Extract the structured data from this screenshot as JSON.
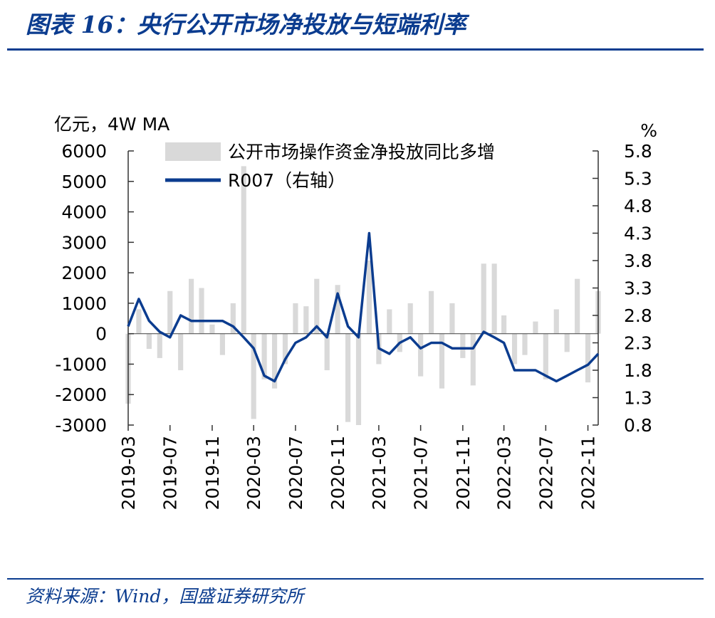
{
  "title": "图表 16：央行公开市场净投放与短端利率",
  "source": "资料来源：Wind，国盛证券研究所",
  "chart_data": {
    "type": "bar+line",
    "left_unit": "亿元，4W MA",
    "right_unit": "%",
    "left_ylim": [
      -3000,
      6000
    ],
    "right_ylim": [
      0.8,
      5.8
    ],
    "left_ticks": [
      "6000",
      "5000",
      "4000",
      "3000",
      "2000",
      "1000",
      "0",
      "-1000",
      "-2000",
      "-3000"
    ],
    "right_ticks": [
      "5.8",
      "5.3",
      "4.8",
      "4.3",
      "3.8",
      "3.3",
      "2.8",
      "2.3",
      "1.8",
      "1.3",
      "0.8"
    ],
    "x_ticks": [
      "2019-03",
      "2019-07",
      "2019-11",
      "2020-03",
      "2020-07",
      "2020-11",
      "2021-03",
      "2021-07",
      "2021-11",
      "2022-03",
      "2022-07",
      "2022-11"
    ],
    "x_start": "2019-03",
    "x_end": "2022-12",
    "bar_color": "#d9d9d9",
    "line_color": "#0b3c8f",
    "legend": [
      "公开市场操作资金净投放同比多增",
      "R007（右轴）"
    ],
    "series": [
      {
        "name": "公开市场操作资金净投放同比多增",
        "axis": "left",
        "x": [
          "2019-03-01",
          "2019-04-01",
          "2019-05-01",
          "2019-06-01",
          "2019-07-01",
          "2019-08-01",
          "2019-09-01",
          "2019-10-01",
          "2019-11-01",
          "2019-12-01",
          "2020-01-01",
          "2020-02-01",
          "2020-03-01",
          "2020-04-01",
          "2020-05-01",
          "2020-06-01",
          "2020-07-01",
          "2020-08-01",
          "2020-09-01",
          "2020-10-01",
          "2020-11-01",
          "2020-12-01",
          "2021-01-01",
          "2021-02-01",
          "2021-03-01",
          "2021-04-01",
          "2021-05-01",
          "2021-06-01",
          "2021-07-01",
          "2021-08-01",
          "2021-09-01",
          "2021-10-01",
          "2021-11-01",
          "2021-12-01",
          "2022-01-01",
          "2022-02-01",
          "2022-03-01",
          "2022-04-01",
          "2022-05-01",
          "2022-06-01",
          "2022-07-01",
          "2022-08-01",
          "2022-09-01",
          "2022-10-01",
          "2022-11-01",
          "2022-12-01"
        ],
        "values": [
          -2300,
          800,
          -500,
          -800,
          1400,
          -1200,
          1800,
          1500,
          300,
          -700,
          1000,
          5500,
          -2800,
          -1500,
          -1800,
          -1000,
          1000,
          900,
          1800,
          -1200,
          1600,
          -2900,
          -3000,
          2400,
          -1000,
          800,
          -600,
          1000,
          -1400,
          1400,
          -1800,
          1000,
          -800,
          -1700,
          2300,
          2300,
          600,
          -1000,
          -700,
          400,
          -1500,
          800,
          -600,
          1800,
          -1600,
          1400
        ]
      },
      {
        "name": "R007（右轴）",
        "axis": "right",
        "x": [
          "2019-03-01",
          "2019-04-01",
          "2019-05-01",
          "2019-06-01",
          "2019-07-01",
          "2019-08-01",
          "2019-09-01",
          "2019-10-01",
          "2019-11-01",
          "2019-12-01",
          "2020-01-01",
          "2020-02-01",
          "2020-03-01",
          "2020-04-01",
          "2020-05-01",
          "2020-06-01",
          "2020-07-01",
          "2020-08-01",
          "2020-09-01",
          "2020-10-01",
          "2020-11-01",
          "2020-12-01",
          "2021-01-01",
          "2021-02-01",
          "2021-03-01",
          "2021-04-01",
          "2021-05-01",
          "2021-06-01",
          "2021-07-01",
          "2021-08-01",
          "2021-09-01",
          "2021-10-01",
          "2021-11-01",
          "2021-12-01",
          "2022-01-01",
          "2022-02-01",
          "2022-03-01",
          "2022-04-01",
          "2022-05-01",
          "2022-06-01",
          "2022-07-01",
          "2022-08-01",
          "2022-09-01",
          "2022-10-01",
          "2022-11-01",
          "2022-12-01"
        ],
        "values": [
          2.6,
          3.1,
          2.7,
          2.5,
          2.4,
          2.8,
          2.7,
          2.7,
          2.7,
          2.7,
          2.6,
          2.4,
          2.2,
          1.7,
          1.6,
          2.0,
          2.3,
          2.4,
          2.6,
          2.4,
          3.2,
          2.6,
          2.4,
          4.3,
          2.2,
          2.1,
          2.3,
          2.4,
          2.2,
          2.3,
          2.3,
          2.2,
          2.2,
          2.2,
          2.5,
          2.4,
          2.3,
          1.8,
          1.8,
          1.8,
          1.7,
          1.6,
          1.7,
          1.8,
          1.9,
          2.1
        ]
      }
    ]
  }
}
